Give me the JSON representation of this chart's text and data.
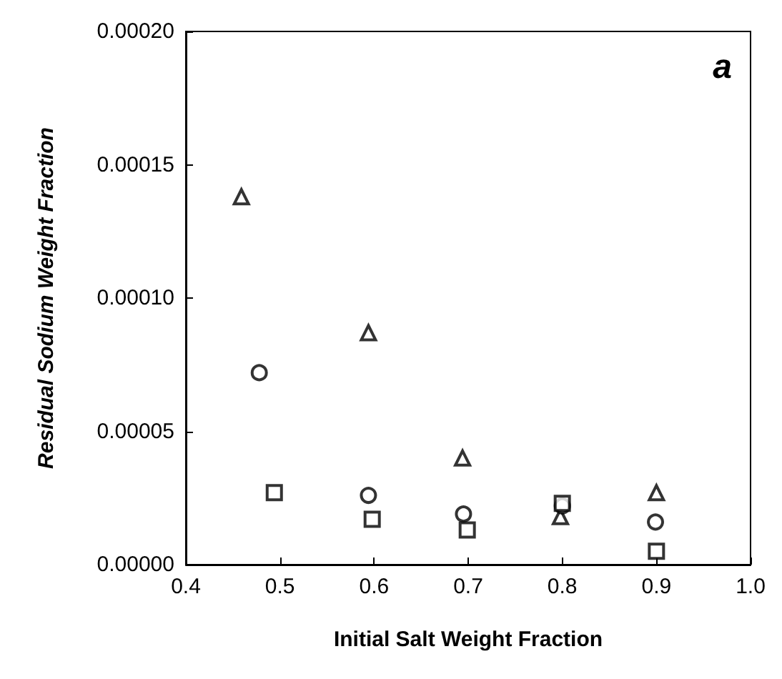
{
  "chart_data": {
    "type": "scatter",
    "xlabel": "Initial Salt Weight Fraction",
    "ylabel": "Residual Sodium Weight Fraction",
    "annotations": [
      "a"
    ],
    "xlim": [
      0.4,
      1.0
    ],
    "xticks": [
      0.4,
      0.5,
      0.6,
      0.7,
      0.8,
      0.9,
      {
        "value": 1.0,
        "label": "1.0"
      }
    ],
    "ylim": [
      0,
      0.0002
    ],
    "yticks": [
      {
        "value": 0,
        "label": "0.00000"
      },
      {
        "value": 5e-05,
        "label": "0.00005"
      },
      {
        "value": 0.0001,
        "label": "0.00010"
      },
      {
        "value": 0.00015,
        "label": "0.00015"
      },
      {
        "value": 0.0002,
        "label": "0.00020"
      }
    ],
    "grid": false,
    "series": [
      {
        "color": "#000000",
        "marker": "triangle",
        "x": [
          0.459,
          0.594,
          0.694,
          0.798,
          0.9
        ],
        "values": [
          0.000138,
          8.7e-05,
          4e-05,
          1.8e-05,
          2.7e-05
        ]
      },
      {
        "color": "#000000",
        "marker": "circle",
        "x": [
          0.478,
          0.594,
          0.695,
          0.8,
          0.899
        ],
        "values": [
          7.2e-05,
          2.6e-05,
          1.9e-05,
          2.2e-05,
          1.6e-05
        ]
      },
      {
        "color": "#000000",
        "marker": "square",
        "x": [
          0.494,
          0.598,
          0.699,
          0.8,
          0.9
        ],
        "values": [
          2.7e-05,
          1.7e-05,
          1.3e-05,
          2.3e-05,
          5e-06
        ]
      }
    ]
  }
}
